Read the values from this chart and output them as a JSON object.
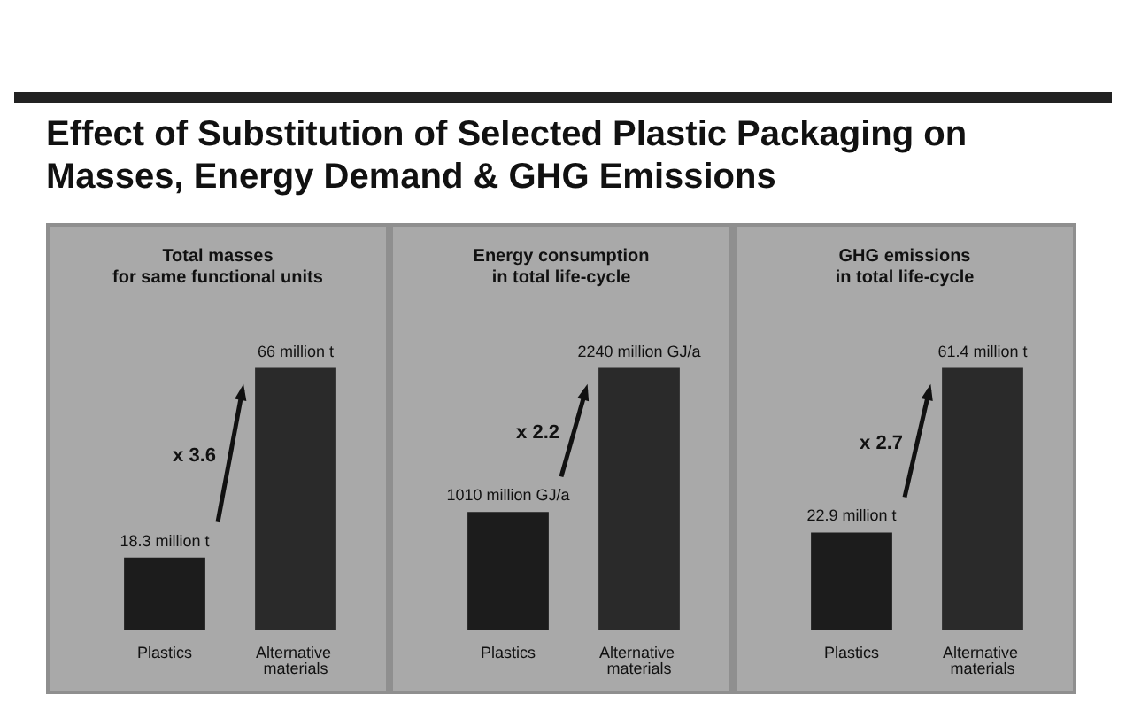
{
  "chart_data": [
    {
      "type": "bar",
      "title": "Effect of Substitution of Selected Plastic Packaging on Masses, Energy Demand & GHG Emissions",
      "subtitle": "Total masses\nfor same functional units",
      "categories": [
        "Plastics",
        "Alternative materials"
      ],
      "values": [
        18.3,
        66
      ],
      "colors": [
        "#1c1c1c",
        "#2a2a2a"
      ],
      "value_labels": [
        "18.3 million t",
        "66 million t"
      ],
      "annotations": [
        "x 3.6"
      ]
    },
    {
      "type": "bar",
      "subtitle": "Energy consumption\nin total life-cycle",
      "categories": [
        "Plastics",
        "Alternative materials"
      ],
      "values": [
        1010,
        2240
      ],
      "colors": [
        "#1c1c1c",
        "#2a2a2a"
      ],
      "value_labels": [
        "1010 million GJ/a",
        "2240 million GJ/a"
      ],
      "annotations": [
        "x 2.2"
      ]
    },
    {
      "type": "bar",
      "subtitle": "GHG emissions\nin total life-cycle",
      "categories": [
        "Plastics",
        "Alternative materials"
      ],
      "values": [
        22.9,
        61.4
      ],
      "colors": [
        "#1c1c1c",
        "#2a2a2a"
      ],
      "value_labels": [
        "22.9 million t",
        "61.4 million t"
      ],
      "annotations": [
        "x 2.7"
      ]
    }
  ]
}
